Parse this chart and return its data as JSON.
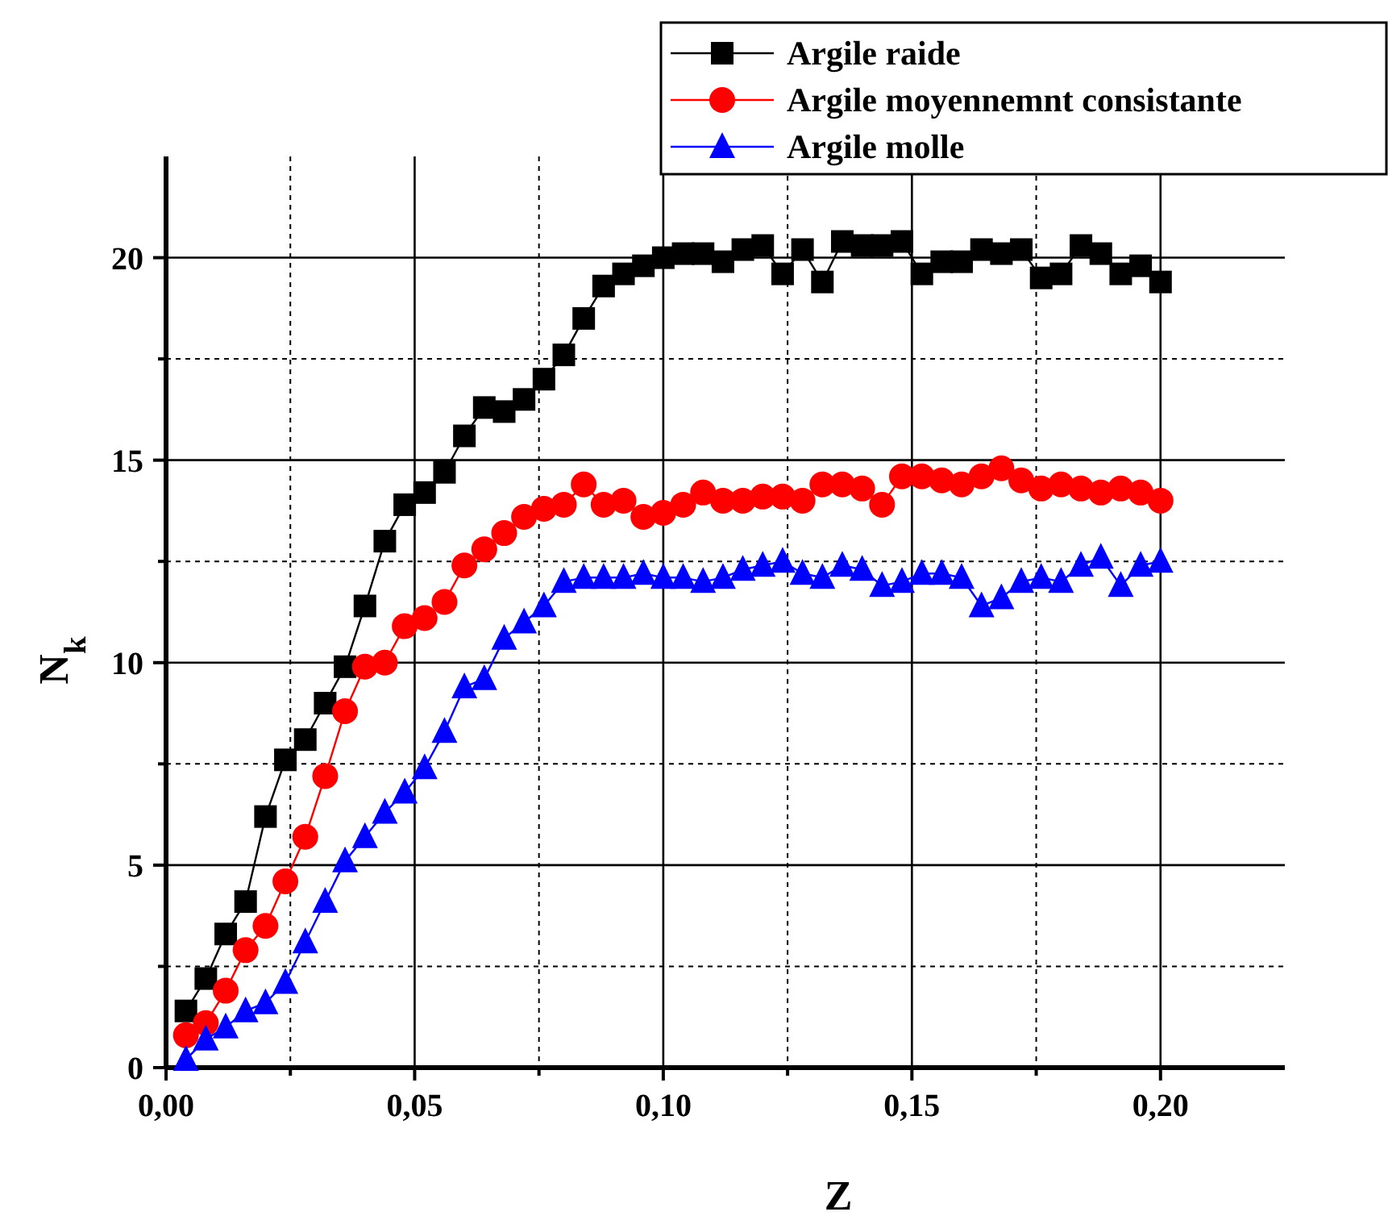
{
  "chart_data": {
    "type": "line",
    "xlabel": "Z",
    "ylabel": "N$_{k}$",
    "x": [
      0.004,
      0.008,
      0.012,
      0.016,
      0.02,
      0.024,
      0.028,
      0.032,
      0.036,
      0.04,
      0.044,
      0.048,
      0.052,
      0.056,
      0.06,
      0.064,
      0.068,
      0.072,
      0.076,
      0.08,
      0.084,
      0.088,
      0.092,
      0.096,
      0.1,
      0.104,
      0.108,
      0.112,
      0.116,
      0.12,
      0.124,
      0.128,
      0.132,
      0.136,
      0.14,
      0.144,
      0.148,
      0.152,
      0.156,
      0.16,
      0.164,
      0.168,
      0.172,
      0.176,
      0.18,
      0.184,
      0.188,
      0.192,
      0.196,
      0.2
    ],
    "series": [
      {
        "name": "Argile raide",
        "color": "#000000",
        "marker": "square",
        "values": [
          1.4,
          2.2,
          3.3,
          4.1,
          6.2,
          7.6,
          8.1,
          9.0,
          9.9,
          11.4,
          13.0,
          13.9,
          14.2,
          14.7,
          15.6,
          16.3,
          16.2,
          16.5,
          17.0,
          17.6,
          18.5,
          19.3,
          19.6,
          19.8,
          20.0,
          20.1,
          20.1,
          19.9,
          20.2,
          20.3,
          19.6,
          20.2,
          19.4,
          20.4,
          20.3,
          20.3,
          20.4,
          19.6,
          19.9,
          19.9,
          20.2,
          20.1,
          20.2,
          19.5,
          19.6,
          20.3,
          20.1,
          19.6,
          19.8,
          19.4
        ]
      },
      {
        "name": "Argile moyennemnt consistante",
        "color": "#ff0000",
        "marker": "circle",
        "values": [
          0.8,
          1.1,
          1.9,
          2.9,
          3.5,
          4.6,
          5.7,
          7.2,
          8.8,
          9.9,
          10.0,
          10.9,
          11.1,
          11.5,
          12.4,
          12.8,
          13.2,
          13.6,
          13.8,
          13.9,
          14.4,
          13.9,
          14.0,
          13.6,
          13.7,
          13.9,
          14.2,
          14.0,
          14.0,
          14.1,
          14.1,
          14.0,
          14.4,
          14.4,
          14.3,
          13.9,
          14.6,
          14.6,
          14.5,
          14.4,
          14.6,
          14.8,
          14.5,
          14.3,
          14.4,
          14.3,
          14.2,
          14.3,
          14.2,
          14.0
        ]
      },
      {
        "name": "Argile molle",
        "color": "#0000ff",
        "marker": "triangle",
        "values": [
          0.2,
          0.7,
          1.0,
          1.4,
          1.6,
          2.1,
          3.1,
          4.1,
          5.1,
          5.7,
          6.3,
          6.8,
          7.4,
          8.3,
          9.4,
          9.6,
          10.6,
          11.0,
          11.4,
          12.0,
          12.1,
          12.1,
          12.1,
          12.2,
          12.1,
          12.1,
          12.0,
          12.1,
          12.3,
          12.4,
          12.5,
          12.2,
          12.1,
          12.4,
          12.3,
          11.9,
          12.0,
          12.2,
          12.2,
          12.1,
          11.4,
          11.6,
          12.0,
          12.1,
          12.0,
          12.4,
          12.6,
          11.9,
          12.4,
          12.5
        ]
      }
    ],
    "xlim": [
      0,
      0.225
    ],
    "xticks": [
      {
        "value": 0,
        "label": "0,00"
      },
      {
        "value": 0.025,
        "label": null
      },
      {
        "value": 0.05,
        "label": "0,05"
      },
      {
        "value": 0.075,
        "label": null
      },
      {
        "value": 0.1,
        "label": "0,10"
      },
      {
        "value": 0.125,
        "label": null
      },
      {
        "value": 0.15,
        "label": "0,15"
      },
      {
        "value": 0.175,
        "label": null
      },
      {
        "value": 0.2,
        "label": "0,20"
      }
    ],
    "ylim": [
      0,
      22.5
    ],
    "yticks": [
      0,
      {
        "value": 2.5,
        "label": null
      },
      5,
      {
        "value": 7.5,
        "label": null
      },
      10,
      {
        "value": 12.5,
        "label": null
      },
      15,
      {
        "value": 17.5,
        "label": null
      },
      20
    ],
    "grid": true,
    "legend": "top right",
    "line_style": "solid"
  }
}
